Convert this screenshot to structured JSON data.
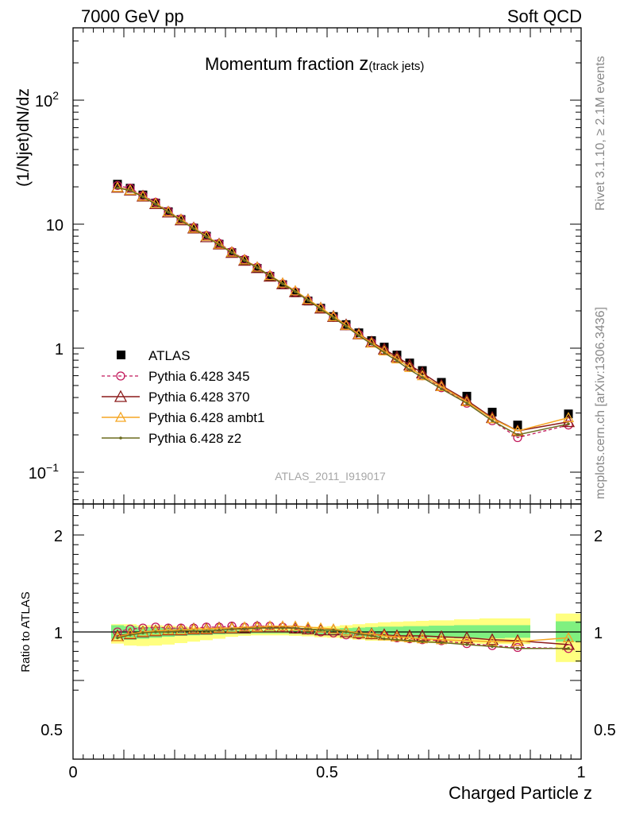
{
  "header": {
    "left": "7000 GeV pp",
    "right": "Soft QCD",
    "title_main": "Momentum fraction ",
    "title_z": "z",
    "title_sub": "(track jets)",
    "side_top": "Rivet 3.1.10, ≥ 2.1M events",
    "side_bottom": "mcplots.cern.ch [arXiv:1306.3436]",
    "analysis_id": "ATLAS_2011_I919017"
  },
  "colors": {
    "atlas": "#000000",
    "p345": "#c2185b",
    "p370": "#8b1a1a",
    "ambt1": "#f5a623",
    "z2": "#6b6b1e",
    "band_inner": "#80f080",
    "band_outer": "#ffff80"
  },
  "chart_data": [
    {
      "type": "scatter",
      "ylabel": "(1/Njet)dN/dz",
      "ylog": true,
      "xlim": [
        0,
        1
      ],
      "ylim": [
        0.055,
        420
      ],
      "y_tick_labels": [
        "10",
        "1",
        "10"
      ],
      "y_tick_exponents": [
        "2",
        "",
        "−1"
      ],
      "x": [
        0.0875,
        0.1125,
        0.1375,
        0.1625,
        0.1875,
        0.2125,
        0.2375,
        0.2625,
        0.2875,
        0.3125,
        0.3375,
        0.3625,
        0.3875,
        0.4125,
        0.4375,
        0.4625,
        0.4875,
        0.5125,
        0.5375,
        0.5625,
        0.5875,
        0.6125,
        0.6375,
        0.6625,
        0.6875,
        0.725,
        0.775,
        0.825,
        0.875,
        0.975
      ],
      "legend": [
        "ATLAS",
        "Pythia 6.428 345",
        "Pythia 6.428 370",
        "Pythia 6.428 ambt1",
        "Pythia 6.428 z2"
      ],
      "series": [
        {
          "name": "ATLAS",
          "values": [
            21.0,
            19.5,
            17.2,
            14.8,
            12.6,
            10.9,
            9.3,
            8.0,
            6.9,
            5.9,
            5.1,
            4.4,
            3.8,
            3.25,
            2.8,
            2.4,
            2.1,
            1.8,
            1.55,
            1.33,
            1.15,
            1.02,
            0.88,
            0.76,
            0.66,
            0.53,
            0.41,
            0.305,
            0.24,
            0.295
          ]
        },
        {
          "name": "Pythia 6.428 345",
          "values": [
            20.5,
            19.5,
            17.0,
            15.0,
            12.7,
            11.0,
            9.4,
            8.1,
            7.0,
            6.0,
            5.2,
            4.5,
            3.85,
            3.3,
            2.85,
            2.42,
            2.09,
            1.77,
            1.52,
            1.29,
            1.11,
            0.95,
            0.82,
            0.7,
            0.6,
            0.48,
            0.36,
            0.26,
            0.19,
            0.24
          ]
        },
        {
          "name": "Pythia 6.428 370",
          "values": [
            19.8,
            18.8,
            16.8,
            14.6,
            12.5,
            10.8,
            9.3,
            7.9,
            6.9,
            5.9,
            5.1,
            4.45,
            3.8,
            3.3,
            2.85,
            2.45,
            2.1,
            1.8,
            1.54,
            1.3,
            1.12,
            0.98,
            0.85,
            0.73,
            0.63,
            0.5,
            0.38,
            0.275,
            0.215,
            0.255
          ]
        },
        {
          "name": "Pythia 6.428 ambt1",
          "values": [
            19.8,
            18.8,
            16.8,
            14.7,
            12.6,
            10.9,
            9.3,
            8.0,
            6.9,
            5.95,
            5.15,
            4.5,
            3.85,
            3.35,
            2.9,
            2.47,
            2.12,
            1.8,
            1.53,
            1.29,
            1.1,
            0.95,
            0.82,
            0.7,
            0.6,
            0.49,
            0.37,
            0.27,
            0.215,
            0.275
          ]
        },
        {
          "name": "Pythia 6.428 z2",
          "values": [
            19.6,
            18.7,
            16.6,
            14.5,
            12.5,
            10.7,
            9.2,
            7.9,
            6.8,
            5.9,
            5.1,
            4.45,
            3.85,
            3.3,
            2.85,
            2.43,
            2.07,
            1.76,
            1.5,
            1.26,
            1.08,
            0.92,
            0.79,
            0.67,
            0.58,
            0.47,
            0.36,
            0.26,
            0.2,
            0.245
          ]
        }
      ]
    },
    {
      "type": "line",
      "xlabel": "Charged Particle z",
      "ylabel": "Ratio to ATLAS",
      "xlim": [
        0,
        1
      ],
      "ylim": [
        0.35,
        2.3
      ],
      "x_ticks": [
        "0",
        "0.5",
        "1"
      ],
      "y_ticks": [
        "2",
        "1",
        "0.5"
      ],
      "y_tick_values": [
        2,
        1,
        0.5
      ],
      "x": [
        0.0875,
        0.1125,
        0.1375,
        0.1625,
        0.1875,
        0.2125,
        0.2375,
        0.2625,
        0.2875,
        0.3125,
        0.3375,
        0.3625,
        0.3875,
        0.4125,
        0.4375,
        0.4625,
        0.4875,
        0.5125,
        0.5375,
        0.5625,
        0.5875,
        0.6125,
        0.6375,
        0.6625,
        0.6875,
        0.725,
        0.775,
        0.825,
        0.875,
        0.975
      ],
      "bands": {
        "edges": [
          0.075,
          0.1,
          0.125,
          0.15,
          0.175,
          0.2,
          0.225,
          0.25,
          0.275,
          0.3,
          0.325,
          0.35,
          0.375,
          0.4,
          0.425,
          0.45,
          0.475,
          0.5,
          0.525,
          0.55,
          0.575,
          0.6,
          0.625,
          0.65,
          0.675,
          0.7,
          0.75,
          0.8,
          0.85,
          0.9,
          0.95,
          1.0
        ],
        "inner": [
          [
            0.93,
            1.07
          ],
          [
            0.92,
            1.06
          ],
          [
            0.93,
            1.05
          ],
          [
            0.94,
            1.05
          ],
          [
            0.95,
            1.04
          ],
          [
            0.96,
            1.04
          ],
          [
            0.965,
            1.035
          ],
          [
            0.97,
            1.03
          ],
          [
            0.975,
            1.025
          ],
          [
            0.98,
            1.02
          ],
          [
            0.98,
            1.02
          ],
          [
            0.985,
            1.015
          ],
          [
            0.985,
            1.015
          ],
          [
            0.985,
            1.015
          ],
          [
            0.98,
            1.02
          ],
          [
            0.975,
            1.025
          ],
          [
            0.97,
            1.03
          ],
          [
            0.965,
            1.035
          ],
          [
            0.96,
            1.04
          ],
          [
            0.955,
            1.045
          ],
          [
            0.95,
            1.05
          ],
          [
            0.95,
            1.055
          ],
          [
            0.945,
            1.055
          ],
          [
            0.945,
            1.06
          ],
          [
            0.94,
            1.06
          ],
          [
            0.94,
            1.065
          ],
          [
            0.935,
            1.07
          ],
          [
            0.935,
            1.07
          ],
          [
            0.94,
            1.07
          ],
          null,
          [
            0.9,
            1.11
          ]
        ],
        "outer": [
          [
            0.88,
            1.08
          ],
          [
            0.86,
            1.08
          ],
          [
            0.855,
            1.07
          ],
          [
            0.86,
            1.07
          ],
          [
            0.87,
            1.065
          ],
          [
            0.885,
            1.06
          ],
          [
            0.9,
            1.05
          ],
          [
            0.915,
            1.045
          ],
          [
            0.93,
            1.04
          ],
          [
            0.95,
            1.035
          ],
          [
            0.96,
            1.03
          ],
          [
            0.965,
            1.03
          ],
          [
            0.965,
            1.03
          ],
          [
            0.965,
            1.035
          ],
          [
            0.96,
            1.04
          ],
          [
            0.955,
            1.045
          ],
          [
            0.945,
            1.055
          ],
          [
            0.94,
            1.06
          ],
          [
            0.93,
            1.07
          ],
          [
            0.92,
            1.08
          ],
          [
            0.91,
            1.09
          ],
          [
            0.91,
            1.1
          ],
          [
            0.9,
            1.105
          ],
          [
            0.895,
            1.11
          ],
          [
            0.89,
            1.115
          ],
          [
            0.885,
            1.12
          ],
          [
            0.88,
            1.13
          ],
          [
            0.875,
            1.14
          ],
          [
            0.875,
            1.14
          ],
          null,
          [
            0.69,
            1.19
          ]
        ]
      },
      "series": [
        {
          "name": "Pythia 6.428 345",
          "values": [
            1.0,
            1.03,
            1.04,
            1.05,
            1.04,
            1.04,
            1.04,
            1.05,
            1.05,
            1.06,
            1.05,
            1.06,
            1.06,
            1.05,
            1.03,
            1.02,
            1.0,
            0.99,
            0.97,
            0.97,
            0.97,
            0.96,
            0.94,
            0.93,
            0.92,
            0.91,
            0.88,
            0.86,
            0.84,
            0.83
          ]
        },
        {
          "name": "Pythia 6.428 370",
          "values": [
            0.96,
            0.98,
            1.0,
            1.01,
            1.02,
            1.02,
            1.03,
            1.03,
            1.04,
            1.04,
            1.04,
            1.05,
            1.05,
            1.05,
            1.04,
            1.03,
            1.02,
            1.02,
            1.0,
            0.99,
            0.98,
            0.97,
            0.96,
            0.96,
            0.96,
            0.95,
            0.94,
            0.92,
            0.91,
            0.87
          ]
        },
        {
          "name": "Pythia 6.428 ambt1",
          "values": [
            0.95,
            0.98,
            1.0,
            1.01,
            1.02,
            1.02,
            1.03,
            1.03,
            1.04,
            1.04,
            1.05,
            1.05,
            1.06,
            1.06,
            1.06,
            1.05,
            1.04,
            1.03,
            1.01,
            0.99,
            0.98,
            0.96,
            0.95,
            0.94,
            0.93,
            0.92,
            0.91,
            0.9,
            0.9,
            0.94
          ]
        },
        {
          "name": "Pythia 6.428 z2",
          "values": [
            0.94,
            0.97,
            0.99,
            1.0,
            1.0,
            1.01,
            1.01,
            1.01,
            1.02,
            1.03,
            1.03,
            1.04,
            1.04,
            1.04,
            1.04,
            1.03,
            1.02,
            1.02,
            1.0,
            0.98,
            0.96,
            0.93,
            0.92,
            0.91,
            0.9,
            0.89,
            0.87,
            0.85,
            0.83,
            0.83
          ]
        }
      ]
    }
  ]
}
